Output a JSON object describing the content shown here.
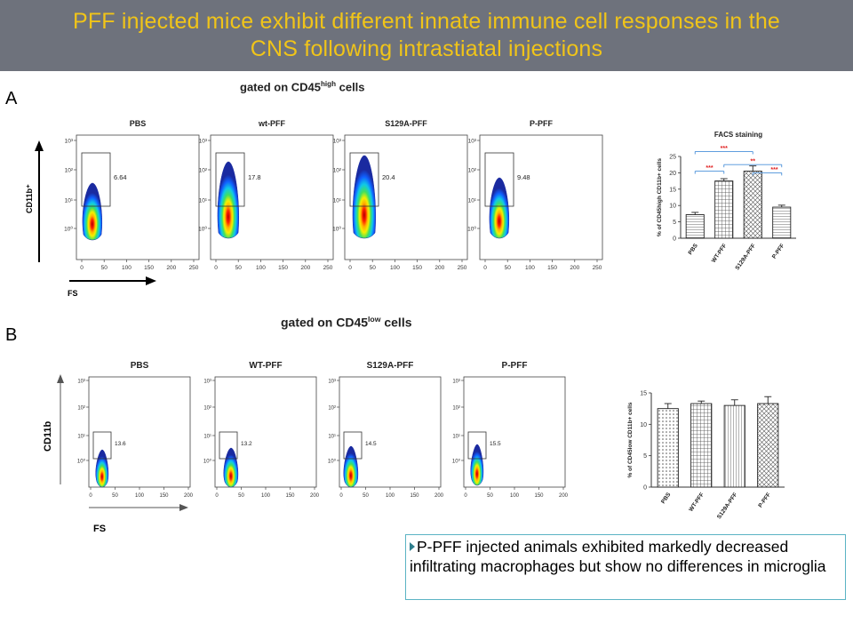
{
  "slide": {
    "title_line1": "PFF injected mice exhibit different innate immune cell responses in the",
    "title_line2": "CNS following intrastiatal injections",
    "title_color": "#f0c419",
    "title_bg": "#6e727c"
  },
  "panel_a": {
    "letter": "A",
    "gate_title_prefix": "gated on CD45",
    "gate_title_sup": "high",
    "gate_title_suffix": " cells",
    "y_axis_label": "CD11b⁺",
    "x_axis_label": "FS",
    "plots": [
      {
        "name": "PBS",
        "gate_value": "6.64"
      },
      {
        "name": "wt-PFF",
        "gate_value": "17.8"
      },
      {
        "name": "S129A-PFF",
        "gate_value": "20.4"
      },
      {
        "name": "P-PFF",
        "gate_value": "9.48"
      }
    ],
    "y_ticks": [
      "10⁰",
      "10¹",
      "10²",
      "10³"
    ],
    "x_ticks": [
      "0",
      "50",
      "100",
      "150",
      "200",
      "250"
    ]
  },
  "panel_b": {
    "letter": "B",
    "gate_title_prefix": "gated on CD45",
    "gate_title_sup": "low",
    "gate_title_suffix": " cells",
    "y_axis_label": "CD11b",
    "x_axis_label": "FS",
    "plots": [
      {
        "name": "PBS",
        "gate_value": "13.6"
      },
      {
        "name": "WT-PFF",
        "gate_value": "13.2"
      },
      {
        "name": "S129A-PFF",
        "gate_value": "14.5"
      },
      {
        "name": "P-PFF",
        "gate_value": "15.5"
      }
    ],
    "y_ticks": [
      "10⁰",
      "10¹",
      "10²",
      "10³"
    ],
    "x_ticks": [
      "0",
      "50",
      "100",
      "150",
      "200"
    ]
  },
  "caption": {
    "text": "P-PFF injected animals exhibited markedly decreased infiltrating macrophages but show no differences in microglia",
    "border_color": "#5bb3c4"
  },
  "chart_data": [
    {
      "type": "bar",
      "title": "FACS staining",
      "categories": [
        "PBS",
        "WT-PFF",
        "S129A-PFF",
        "P-PFF"
      ],
      "values": [
        7.2,
        17.5,
        20.5,
        9.5
      ],
      "errors": [
        0.7,
        0.7,
        1.6,
        0.6
      ],
      "ylabel": "% of CD45high CD11b+ cells",
      "ylim": [
        0,
        25
      ],
      "y_ticks": [
        "0",
        "5",
        "10",
        "15",
        "20",
        "25"
      ],
      "significance": [
        {
          "between": [
            "PBS",
            "WT-PFF"
          ],
          "label": "***"
        },
        {
          "between": [
            "PBS",
            "S129A-PFF"
          ],
          "label": "***"
        },
        {
          "between": [
            "WT-PFF",
            "P-PFF"
          ],
          "label": "**"
        },
        {
          "between": [
            "S129A-PFF",
            "P-PFF"
          ],
          "label": "***"
        }
      ],
      "significance_color": "#e02020",
      "bracket_color": "#4a90d9"
    },
    {
      "type": "bar",
      "title": "",
      "categories": [
        "PBS",
        "WT-PFF",
        "S129A-PFF",
        "P-PFF"
      ],
      "values": [
        12.5,
        13.3,
        13.0,
        13.3
      ],
      "errors": [
        0.8,
        0.4,
        0.9,
        1.1
      ],
      "ylabel": "% of CD45low CD11b+ cells",
      "ylim": [
        0,
        15
      ],
      "y_ticks": [
        "0",
        "5",
        "10",
        "15"
      ]
    }
  ]
}
